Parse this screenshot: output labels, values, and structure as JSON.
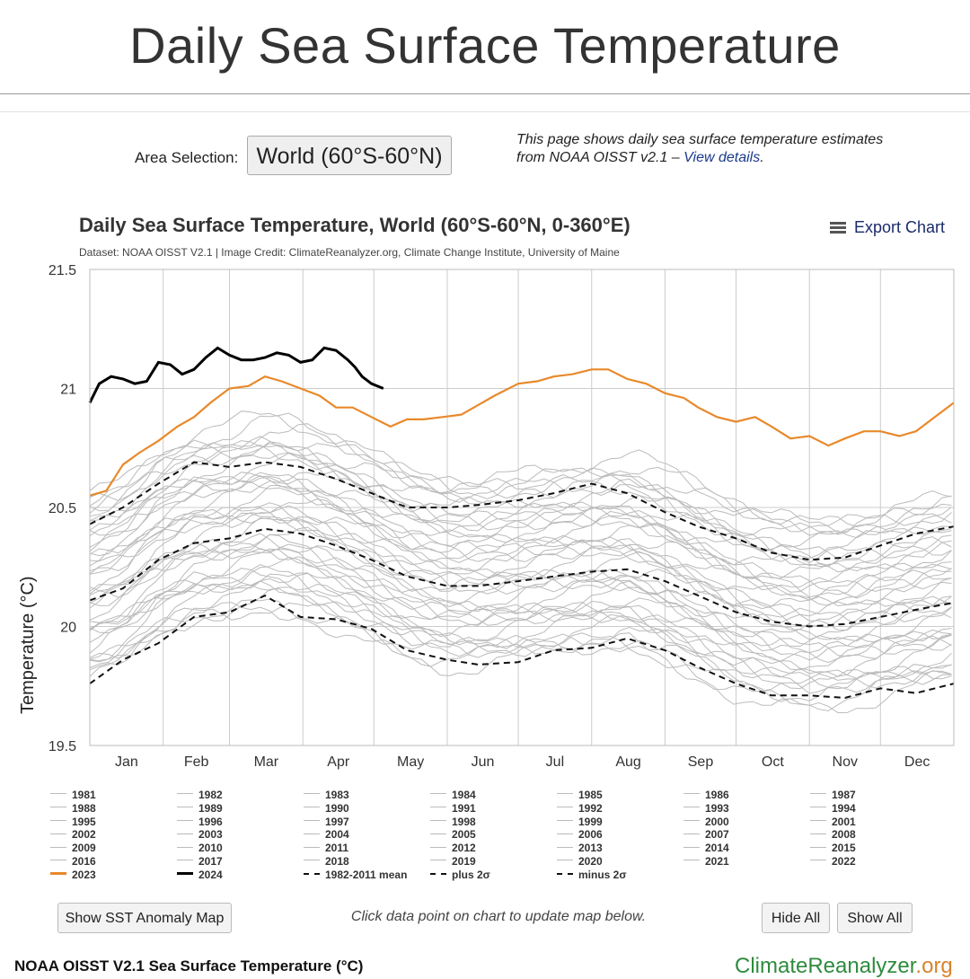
{
  "page": {
    "title": "Daily Sea Surface Temperature",
    "area_label": "Area Selection:",
    "area_value": "World (60°S-60°N)",
    "info_text": "This page shows daily sea surface temperature estimates from NOAA OISST v2.1 –",
    "info_link": "View details",
    "info_end": ".",
    "export_label": "Export Chart",
    "show_anomaly_button": "Show SST Anomaly Map",
    "click_note": "Click data point on chart to update map below.",
    "hide_all_button": "Hide All",
    "show_all_button": "Show All",
    "footer_left": "NOAA OISST V2.1 Sea Surface Temperature (°C)",
    "footer_brand": "ClimateReanalyzer",
    "footer_brand_tld": ".org"
  },
  "chart_data": {
    "type": "line",
    "title": "Daily Sea Surface Temperature, World (60°S-60°N, 0-360°E)",
    "subtitle": "Dataset: NOAA OISST V2.1 | Image Credit: ClimateReanalyzer.org, Climate Change Institute, University of Maine",
    "ylabel": "Temperature (°C)",
    "xlabel": "",
    "ylim": [
      19.5,
      21.5
    ],
    "xlim": [
      1,
      366
    ],
    "yticks": [
      19.5,
      20,
      20.5,
      21,
      21.5
    ],
    "ytick_labels": [
      "19.5",
      "20",
      "20.5",
      "21",
      "21.5"
    ],
    "month_labels": [
      "Jan",
      "Feb",
      "Mar",
      "Apr",
      "May",
      "Jun",
      "Jul",
      "Aug",
      "Sep",
      "Oct",
      "Nov",
      "Dec"
    ],
    "month_starts": [
      1,
      32,
      60,
      91,
      121,
      152,
      182,
      213,
      244,
      274,
      305,
      335
    ],
    "grid": true,
    "legend_position": "bottom",
    "colors": {
      "gray": "#bbbbbb",
      "y2023": "#e8892b",
      "y2024": "#000000",
      "stat": "#111111"
    },
    "years_gray": [
      "1981",
      "1982",
      "1983",
      "1984",
      "1985",
      "1986",
      "1987",
      "1988",
      "1989",
      "1990",
      "1991",
      "1992",
      "1993",
      "1994",
      "1995",
      "1996",
      "1997",
      "1998",
      "1999",
      "2000",
      "2001",
      "2002",
      "2003",
      "2004",
      "2005",
      "2006",
      "2007",
      "2008",
      "2009",
      "2010",
      "2011",
      "2012",
      "2013",
      "2014",
      "2015",
      "2016",
      "2017",
      "2018",
      "2019",
      "2020",
      "2021",
      "2022"
    ],
    "stat_series": [
      {
        "name": "1982-2011 mean",
        "x": [
          1,
          15,
          30,
          45,
          60,
          75,
          90,
          105,
          120,
          135,
          152,
          165,
          182,
          197,
          213,
          228,
          244,
          258,
          274,
          289,
          305,
          320,
          335,
          350,
          366
        ],
        "values": [
          20.11,
          20.16,
          20.28,
          20.35,
          20.37,
          20.41,
          20.39,
          20.34,
          20.28,
          20.21,
          20.17,
          20.17,
          20.19,
          20.21,
          20.23,
          20.24,
          20.19,
          20.13,
          20.06,
          20.02,
          20.0,
          20.01,
          20.04,
          20.07,
          20.1
        ]
      },
      {
        "name": "plus 2σ",
        "x": [
          1,
          15,
          30,
          45,
          60,
          75,
          90,
          105,
          120,
          135,
          152,
          165,
          182,
          197,
          213,
          228,
          244,
          258,
          274,
          289,
          305,
          320,
          335,
          350,
          366
        ],
        "values": [
          20.43,
          20.5,
          20.6,
          20.69,
          20.67,
          20.69,
          20.67,
          20.62,
          20.56,
          20.5,
          20.5,
          20.51,
          20.53,
          20.56,
          20.6,
          20.56,
          20.48,
          20.42,
          20.37,
          20.31,
          20.28,
          20.29,
          20.34,
          20.39,
          20.42
        ]
      },
      {
        "name": "minus 2σ",
        "x": [
          1,
          15,
          30,
          45,
          60,
          75,
          90,
          105,
          120,
          135,
          152,
          165,
          182,
          197,
          213,
          228,
          244,
          258,
          274,
          289,
          305,
          320,
          335,
          350,
          366
        ],
        "values": [
          19.76,
          19.86,
          19.93,
          20.04,
          20.06,
          20.13,
          20.04,
          20.03,
          19.99,
          19.9,
          19.86,
          19.84,
          19.85,
          19.9,
          19.91,
          19.95,
          19.9,
          19.83,
          19.76,
          19.71,
          19.71,
          19.7,
          19.74,
          19.72,
          19.76
        ]
      }
    ],
    "highlight_series": [
      {
        "name": "2023",
        "x": [
          1,
          8,
          15,
          22,
          30,
          38,
          45,
          52,
          60,
          68,
          75,
          82,
          90,
          98,
          105,
          112,
          120,
          128,
          135,
          142,
          150,
          158,
          165,
          172,
          182,
          190,
          197,
          205,
          213,
          220,
          228,
          236,
          244,
          252,
          258,
          266,
          274,
          282,
          289,
          297,
          305,
          313,
          320,
          328,
          335,
          343,
          350,
          358,
          366
        ],
        "values": [
          20.55,
          20.57,
          20.68,
          20.73,
          20.78,
          20.84,
          20.88,
          20.94,
          21.0,
          21.01,
          21.05,
          21.03,
          21.0,
          20.97,
          20.92,
          20.92,
          20.88,
          20.84,
          20.87,
          20.87,
          20.88,
          20.89,
          20.93,
          20.97,
          21.02,
          21.03,
          21.05,
          21.06,
          21.08,
          21.08,
          21.04,
          21.02,
          20.98,
          20.96,
          20.92,
          20.88,
          20.86,
          20.88,
          20.84,
          20.79,
          20.8,
          20.76,
          20.79,
          20.82,
          20.82,
          20.8,
          20.82,
          20.88,
          20.94
        ]
      },
      {
        "name": "2024",
        "x": [
          1,
          5,
          10,
          15,
          20,
          25,
          30,
          35,
          40,
          45,
          50,
          55,
          60,
          65,
          70,
          75,
          80,
          85,
          90,
          95,
          100,
          105,
          110,
          113,
          116,
          120,
          125
        ],
        "values": [
          20.94,
          21.02,
          21.05,
          21.04,
          21.02,
          21.03,
          21.11,
          21.1,
          21.06,
          21.08,
          21.13,
          21.17,
          21.14,
          21.12,
          21.12,
          21.13,
          21.15,
          21.14,
          21.11,
          21.12,
          21.17,
          21.16,
          21.12,
          21.09,
          21.05,
          21.02,
          21.0
        ]
      }
    ],
    "legend": [
      "1981",
      "1982",
      "1983",
      "1984",
      "1985",
      "1986",
      "1987",
      "1988",
      "1989",
      "1990",
      "1991",
      "1992",
      "1993",
      "1994",
      "1995",
      "1996",
      "1997",
      "1998",
      "1999",
      "2000",
      "2001",
      "2002",
      "2003",
      "2004",
      "2005",
      "2006",
      "2007",
      "2008",
      "2009",
      "2010",
      "2011",
      "2012",
      "2013",
      "2014",
      "2015",
      "2016",
      "2017",
      "2018",
      "2019",
      "2020",
      "2021",
      "2022",
      "2023",
      "2024",
      "1982-2011 mean",
      "plus 2σ",
      "minus 2σ"
    ]
  }
}
